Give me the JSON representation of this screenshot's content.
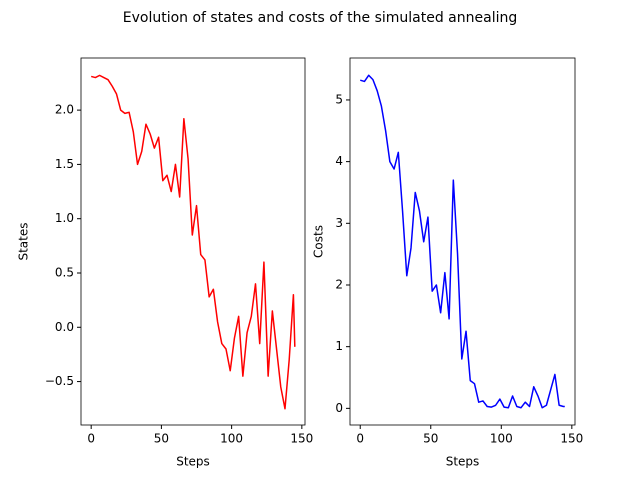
{
  "title": "Evolution of states and costs of the simulated annealing",
  "chart_data": [
    {
      "type": "line",
      "x_label": "Steps",
      "y_label": "States",
      "x": [
        0,
        3,
        6,
        9,
        12,
        15,
        18,
        21,
        24,
        27,
        30,
        33,
        36,
        39,
        42,
        45,
        48,
        51,
        54,
        57,
        60,
        63,
        66,
        69,
        72,
        75,
        78,
        81,
        84,
        87,
        90,
        93,
        96,
        99,
        102,
        105,
        108,
        111,
        114,
        117,
        120,
        123,
        126,
        129,
        132,
        135,
        138,
        141,
        144,
        145
      ],
      "series": [
        {
          "color": "#ff0000",
          "values": [
            2.31,
            2.3,
            2.32,
            2.3,
            2.28,
            2.22,
            2.15,
            2.0,
            1.97,
            1.98,
            1.8,
            1.5,
            1.62,
            1.87,
            1.78,
            1.65,
            1.75,
            1.35,
            1.4,
            1.25,
            1.5,
            1.2,
            1.92,
            1.55,
            0.85,
            1.12,
            0.67,
            0.62,
            0.28,
            0.35,
            0.05,
            -0.15,
            -0.2,
            -0.4,
            -0.1,
            0.1,
            -0.45,
            -0.05,
            0.1,
            0.4,
            -0.15,
            0.6,
            -0.45,
            0.15,
            -0.2,
            -0.55,
            -0.75,
            -0.3,
            0.3,
            -0.18
          ]
        }
      ],
      "xlim": [
        -7.25,
        152.25
      ],
      "xticks": [
        0,
        50,
        100,
        150
      ],
      "ylim": [
        -0.9,
        2.48
      ],
      "yticks": [
        {
          "value": -0.5,
          "label": "−0.5"
        },
        {
          "value": 0,
          "label": "0.0"
        },
        0.5,
        {
          "value": 1,
          "label": "1.0"
        },
        1.5,
        {
          "value": 2,
          "label": "2.0"
        }
      ]
    },
    {
      "type": "line",
      "x_label": "Steps",
      "y_label": "Costs",
      "x": [
        0,
        3,
        6,
        9,
        12,
        15,
        18,
        21,
        24,
        27,
        30,
        33,
        36,
        39,
        42,
        45,
        48,
        51,
        54,
        57,
        60,
        63,
        66,
        69,
        72,
        75,
        78,
        81,
        84,
        87,
        90,
        93,
        96,
        99,
        102,
        105,
        108,
        111,
        114,
        117,
        120,
        123,
        126,
        129,
        132,
        135,
        138,
        141,
        144,
        145
      ],
      "series": [
        {
          "color": "#0000ff",
          "values": [
            5.32,
            5.3,
            5.4,
            5.33,
            5.15,
            4.9,
            4.5,
            4.0,
            3.88,
            4.15,
            3.2,
            2.15,
            2.6,
            3.5,
            3.2,
            2.7,
            3.1,
            1.9,
            2.0,
            1.55,
            2.2,
            1.45,
            3.7,
            2.5,
            0.8,
            1.25,
            0.45,
            0.4,
            0.1,
            0.12,
            0.03,
            0.02,
            0.05,
            0.15,
            0.02,
            0.01,
            0.2,
            0.03,
            0.01,
            0.1,
            0.03,
            0.35,
            0.2,
            0.01,
            0.05,
            0.3,
            0.55,
            0.05,
            0.03,
            0.03
          ]
        }
      ],
      "xlim": [
        -7.25,
        152.25
      ],
      "xticks": [
        0,
        50,
        100,
        150
      ],
      "ylim": [
        -0.27,
        5.68
      ],
      "yticks": [
        0,
        1,
        2,
        3,
        4,
        5
      ]
    }
  ]
}
